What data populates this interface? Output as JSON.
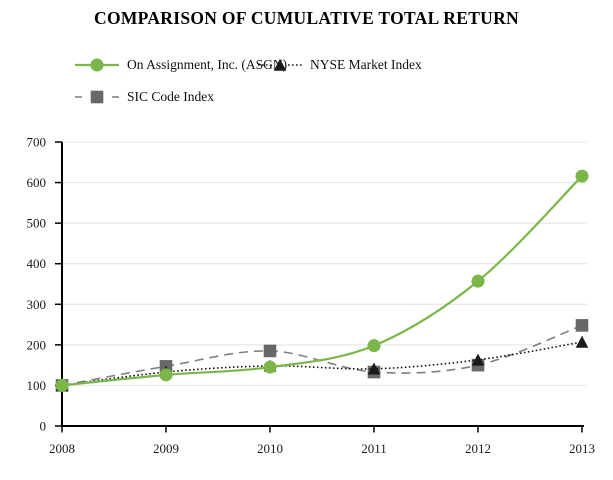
{
  "title": "COMPARISON OF CUMULATIVE TOTAL RETURN",
  "colors": {
    "asgn_green": "#7ab648",
    "nyse_black": "#1a1a1a",
    "sic_gray_marker": "#686868",
    "sic_gray_line": "#808080",
    "gridline": "#e4e4e4",
    "axis": "#000000",
    "tick_text": "#1a1a1a"
  },
  "chart_data": {
    "type": "line",
    "title": "COMPARISON OF CUMULATIVE TOTAL RETURN",
    "x": [
      2008,
      2009,
      2010,
      2011,
      2012,
      2013
    ],
    "series": [
      {
        "name": "On Assignment, Inc. (ASGN)",
        "values": [
          100,
          126,
          145,
          198,
          357,
          616
        ],
        "color": "#7ab648",
        "line_style": "solid",
        "marker": "circle"
      },
      {
        "name": "NYSE Market Index",
        "values": [
          100,
          133,
          148,
          141,
          163,
          207
        ],
        "color": "#1a1a1a",
        "line_style": "dotted",
        "marker": "triangle"
      },
      {
        "name": "SIC Code Index",
        "values": [
          100,
          147,
          185,
          133,
          150,
          248
        ],
        "color": "#686868",
        "line_color": "#808080",
        "line_style": "dashed",
        "marker": "square"
      }
    ],
    "ylim": [
      0,
      700
    ],
    "yticks": [
      0,
      100,
      200,
      300,
      400,
      500,
      600,
      700
    ],
    "xlabel": "",
    "ylabel": "",
    "grid": "horizontal gridlines every 100",
    "legend_position": "top-left, two rows"
  }
}
